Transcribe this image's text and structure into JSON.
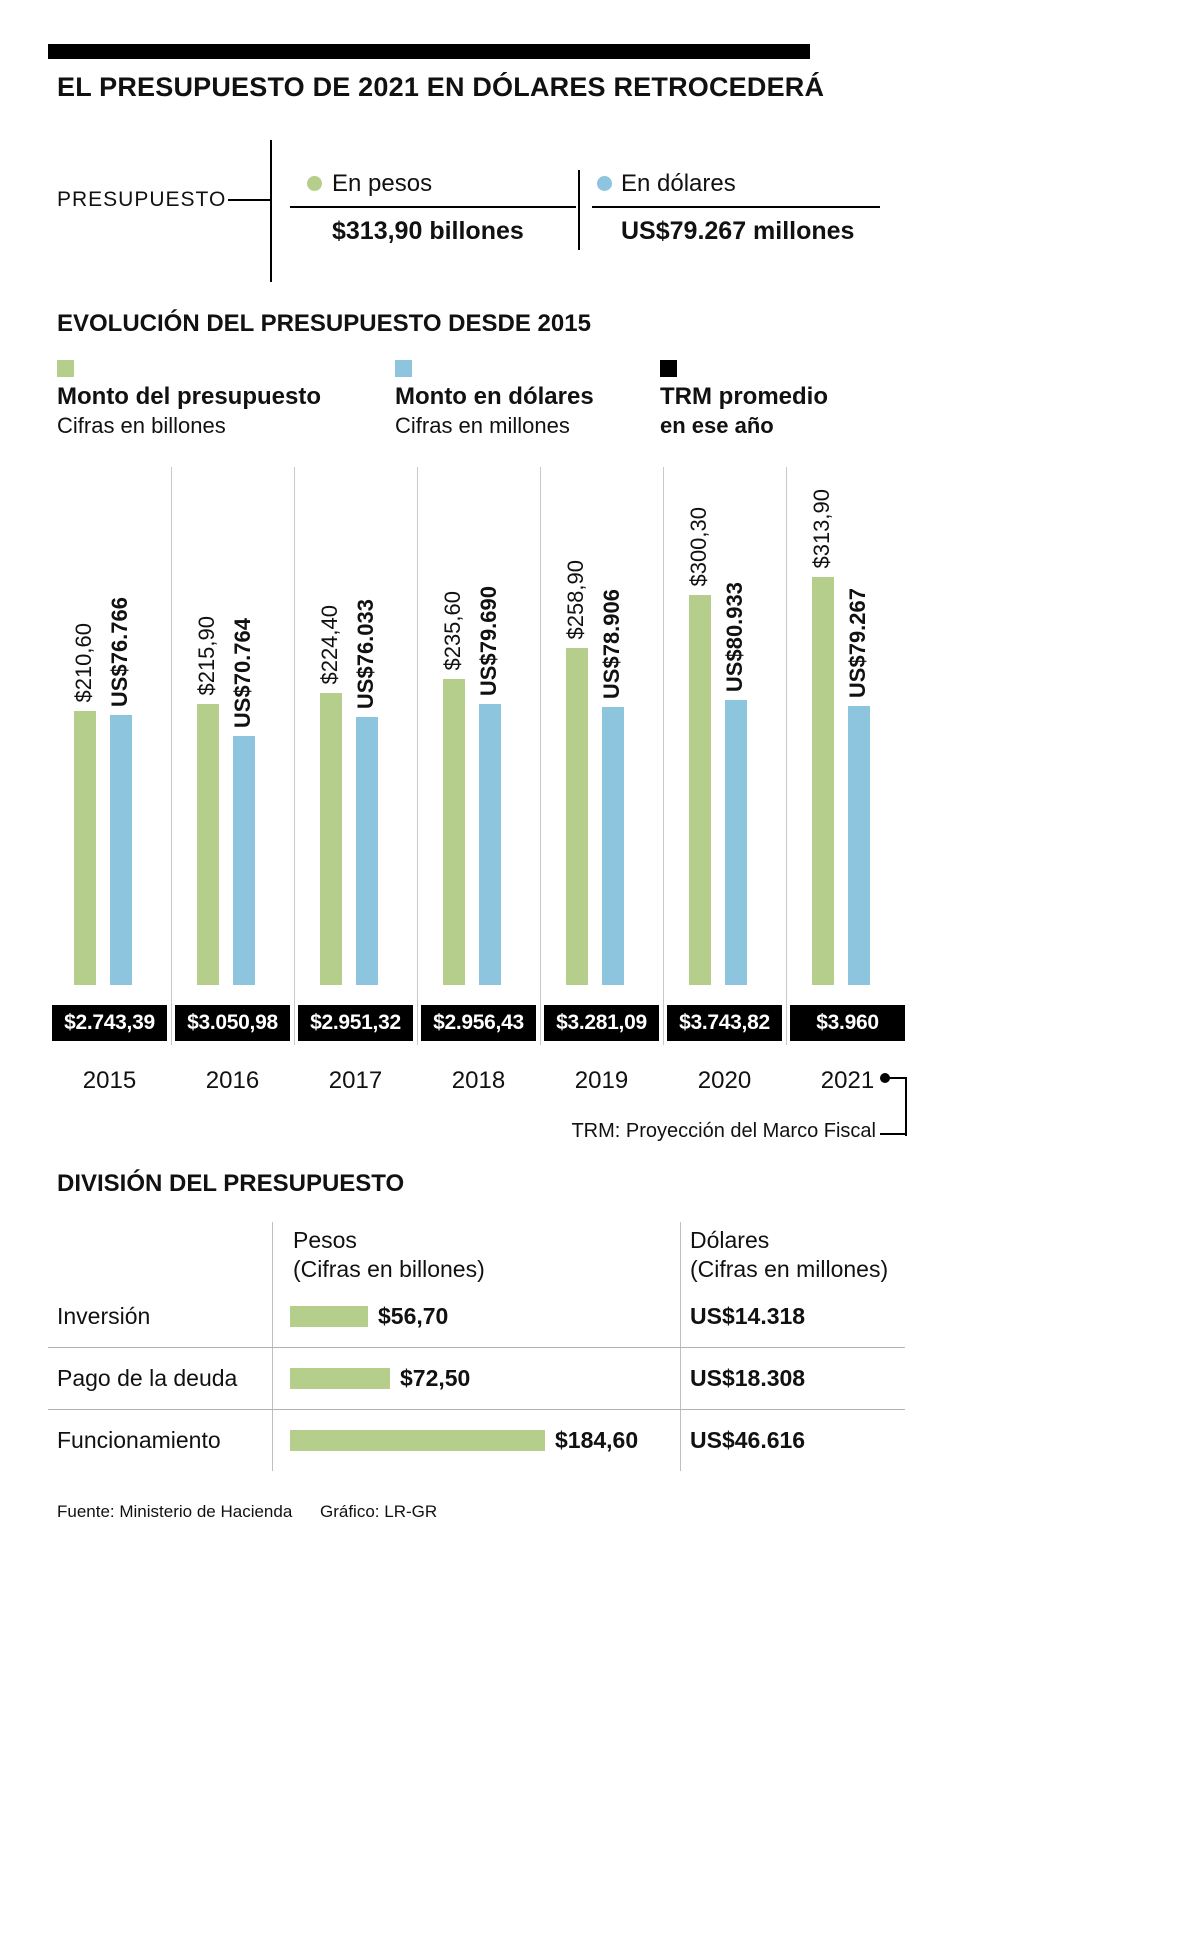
{
  "title": "EL PRESUPUESTO DE 2021 EN DÓLARES RETROCEDERÁ",
  "presupuesto": {
    "label": "PRESUPUESTO",
    "pesos": {
      "legend": "En pesos",
      "value": "$313,90 billones"
    },
    "dolares": {
      "legend": "En dólares",
      "value": "US$79.267 millones"
    }
  },
  "evolution": {
    "title": "EVOLUCIÓN DEL PRESUPUESTO DESDE 2015",
    "legend": [
      {
        "title": "Monto del presupuesto",
        "subtitle": "Cifras en billones"
      },
      {
        "title": "Monto en dólares",
        "subtitle": "Cifras en millones"
      },
      {
        "title": "TRM promedio",
        "subtitle": "en ese año"
      }
    ]
  },
  "chart_data": {
    "type": "bar",
    "title": "EVOLUCIÓN DEL PRESUPUESTO DESDE 2015",
    "categories": [
      "2015",
      "2016",
      "2017",
      "2018",
      "2019",
      "2020",
      "2021"
    ],
    "series": [
      {
        "name": "Monto del presupuesto (cifras en billones de pesos)",
        "color": "#b6ce8c",
        "values": [
          210.6,
          215.9,
          224.4,
          235.6,
          258.9,
          300.3,
          313.9
        ],
        "labels": [
          "$210,60",
          "$215,90",
          "$224,40",
          "$235,60",
          "$258,90",
          "$300,30",
          "$313,90"
        ]
      },
      {
        "name": "Monto en dólares (cifras en millones)",
        "color": "#8ec5de",
        "values": [
          76766,
          70764,
          76033,
          79690,
          78906,
          80933,
          79267
        ],
        "labels": [
          "US$76.766",
          "US$70.764",
          "US$76.033",
          "US$79.690",
          "US$78.906",
          "US$80.933",
          "US$79.267"
        ]
      },
      {
        "name": "TRM promedio en ese año",
        "color": "#000000",
        "values": [
          2743.39,
          3050.98,
          2951.32,
          2956.43,
          3281.09,
          3743.82,
          3960
        ],
        "labels": [
          "$2.743,39",
          "$3.050,98",
          "$2.951,32",
          "$2.956,43",
          "$3.281,09",
          "$3.743,82",
          "$3.960"
        ]
      }
    ],
    "note": "TRM: Proyección del Marco Fiscal",
    "legend_position": "top",
    "grid": false
  },
  "division": {
    "title": "DIVISIÓN DEL PRESUPUESTO",
    "columns": {
      "pesos_title": "Pesos",
      "pesos_subtitle": "(Cifras en billones)",
      "dolares_title": "Dólares",
      "dolares_subtitle": "(Cifras en millones)"
    },
    "rows": [
      {
        "label": "Inversión",
        "pesos_value": 56.7,
        "pesos_label": "$56,70",
        "dolares_label": "US$14.318"
      },
      {
        "label": "Pago de la deuda",
        "pesos_value": 72.5,
        "pesos_label": "$72,50",
        "dolares_label": "US$18.308"
      },
      {
        "label": "Funcionamiento",
        "pesos_value": 184.6,
        "pesos_label": "$184,60",
        "dolares_label": "US$46.616"
      }
    ]
  },
  "footer": {
    "source": "Fuente: Ministerio de Hacienda",
    "credit": "Gráfico: LR-GR"
  },
  "colors": {
    "pesos": "#b6ce8c",
    "dolares": "#8ec5de",
    "trm": "#000000"
  }
}
